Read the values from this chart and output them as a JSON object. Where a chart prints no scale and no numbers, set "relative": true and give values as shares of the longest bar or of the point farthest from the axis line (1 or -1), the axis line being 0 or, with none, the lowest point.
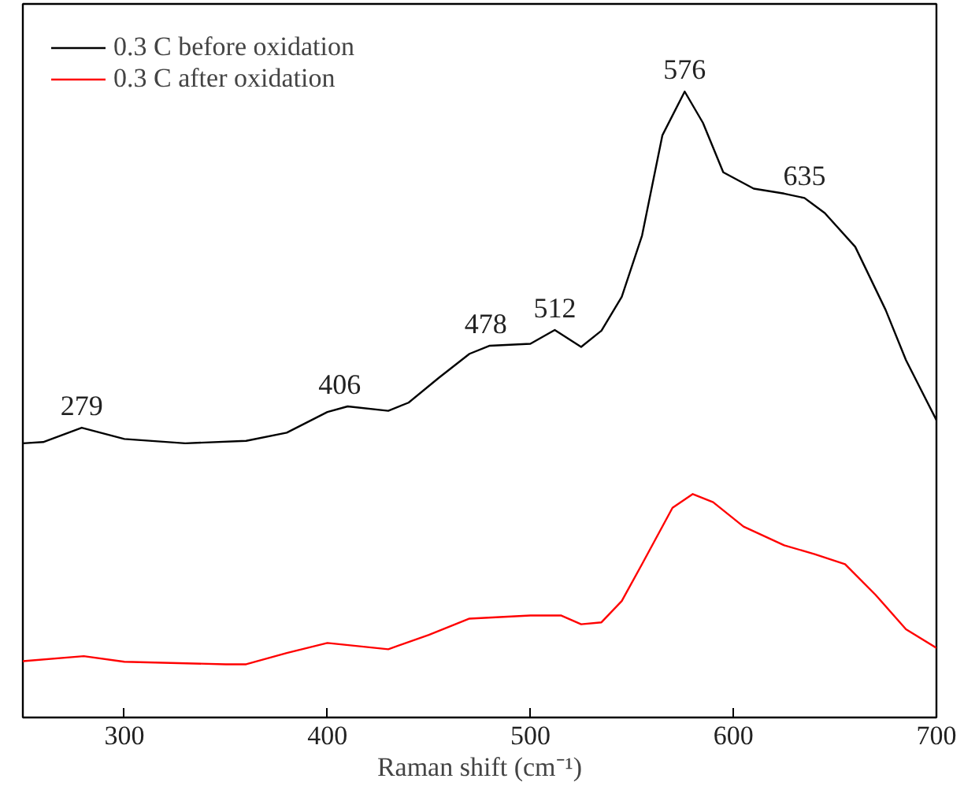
{
  "chart_data": {
    "type": "line",
    "relative": true,
    "xlabel": "Raman shift (cm⁻¹)",
    "xlim": [
      250,
      700
    ],
    "xticks": [
      300,
      400,
      500,
      600,
      700
    ],
    "legend": "top left",
    "grid": false,
    "series": [
      {
        "name": "0.3 C before oxidation",
        "color": "#000000",
        "x": [
          250,
          260,
          279,
          300,
          330,
          360,
          380,
          400,
          410,
          430,
          440,
          455,
          470,
          480,
          500,
          512,
          525,
          535,
          545,
          555,
          565,
          576,
          585,
          595,
          610,
          625,
          635,
          645,
          660,
          675,
          685,
          700
        ],
        "values": [
          0.438,
          0.44,
          0.463,
          0.445,
          0.438,
          0.442,
          0.455,
          0.488,
          0.497,
          0.49,
          0.503,
          0.543,
          0.581,
          0.594,
          0.597,
          0.619,
          0.592,
          0.618,
          0.672,
          0.77,
          0.93,
          1.0,
          0.95,
          0.871,
          0.845,
          0.837,
          0.83,
          0.806,
          0.752,
          0.651,
          0.571,
          0.475
        ]
      },
      {
        "name": "0.3 C after oxidation",
        "color": "#ff0000",
        "x": [
          250,
          280,
          300,
          350,
          360,
          380,
          400,
          430,
          450,
          470,
          500,
          515,
          525,
          535,
          545,
          555,
          570,
          580,
          590,
          605,
          625,
          640,
          655,
          670,
          685,
          700
        ],
        "values": [
          0.09,
          0.098,
          0.089,
          0.085,
          0.085,
          0.103,
          0.119,
          0.109,
          0.132,
          0.158,
          0.163,
          0.163,
          0.149,
          0.152,
          0.186,
          0.245,
          0.335,
          0.357,
          0.344,
          0.305,
          0.275,
          0.261,
          0.245,
          0.196,
          0.141,
          0.111
        ]
      }
    ],
    "annotations": [
      {
        "text": "279",
        "x": 279,
        "y": 0.463
      },
      {
        "text": "406",
        "x": 406,
        "y": 0.497
      },
      {
        "text": "478",
        "x": 478,
        "y": 0.594
      },
      {
        "text": "512",
        "x": 512,
        "y": 0.619
      },
      {
        "text": "576",
        "x": 576,
        "y": 1.0
      },
      {
        "text": "635",
        "x": 635,
        "y": 0.83
      }
    ]
  }
}
